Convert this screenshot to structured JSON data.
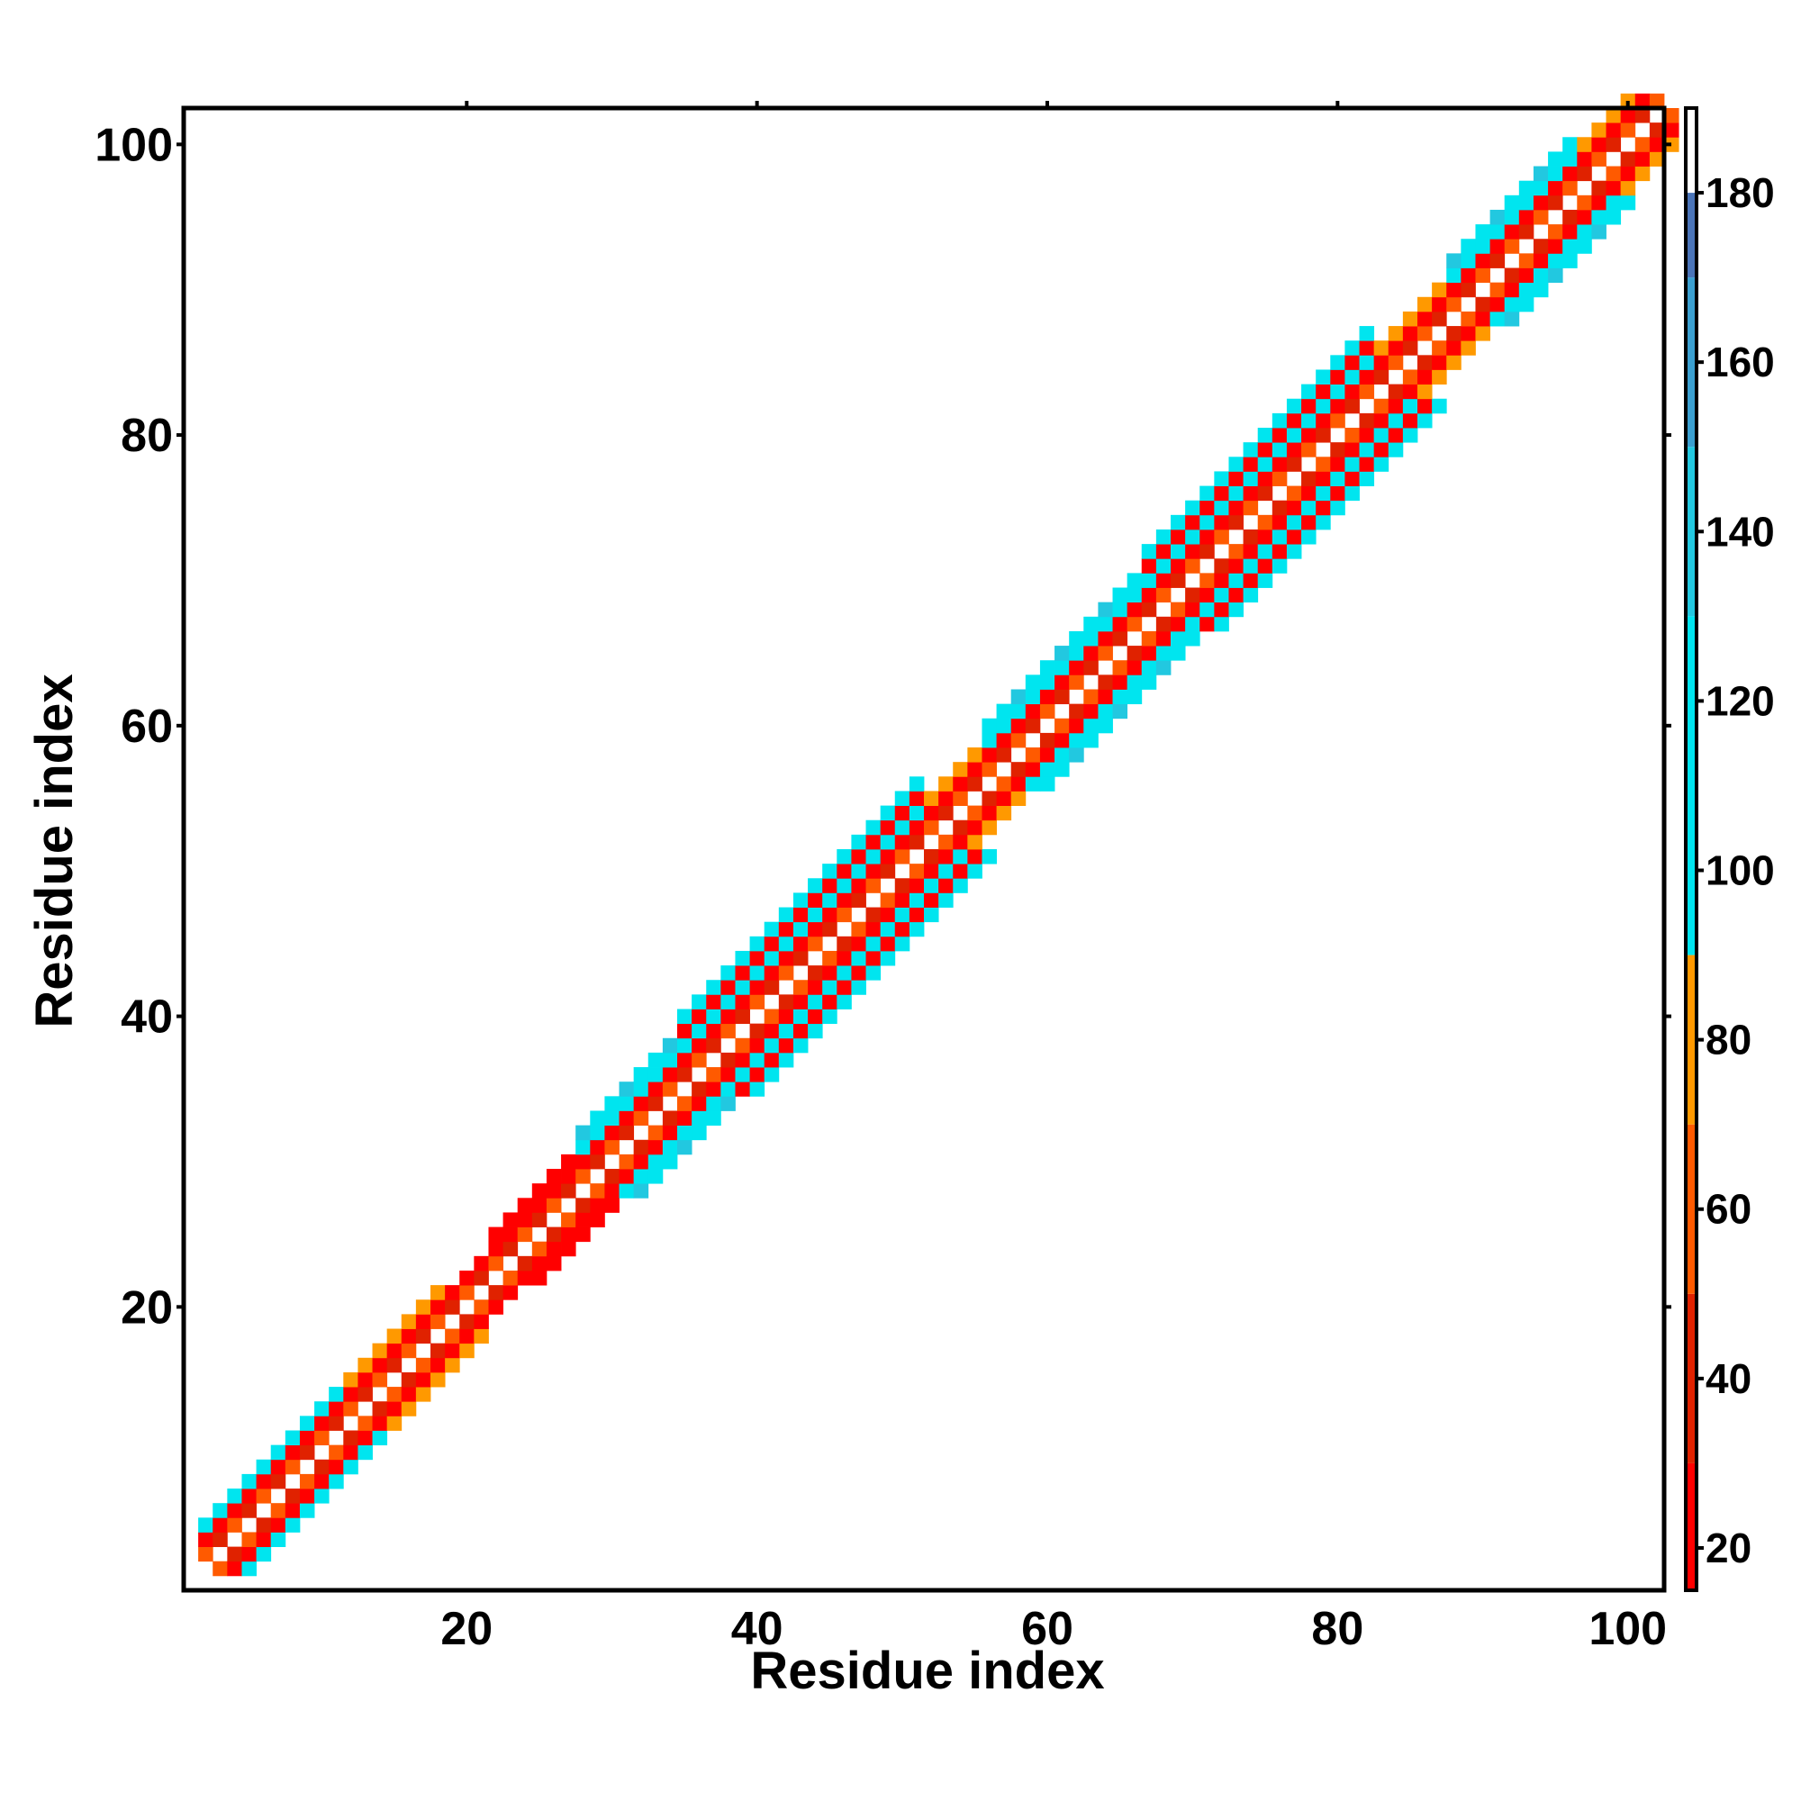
{
  "chart_data": {
    "type": "heatmap",
    "title": "",
    "xlabel": "Residue index",
    "ylabel": "Residue index",
    "xlim": [
      1,
      102
    ],
    "ylim": [
      1,
      102
    ],
    "x_ticks": [
      20,
      40,
      60,
      80,
      100
    ],
    "y_ticks": [
      20,
      40,
      60,
      80,
      100
    ],
    "grid": false,
    "colorbar": {
      "position": "right",
      "range": [
        15,
        190
      ],
      "ticks": [
        20,
        40,
        60,
        80,
        100,
        120,
        140,
        160,
        180
      ],
      "bands": [
        {
          "min": 15,
          "max": 30,
          "color": "#ff0000"
        },
        {
          "min": 30,
          "max": 50,
          "color": "#e02200"
        },
        {
          "min": 50,
          "max": 70,
          "color": "#ff5a00"
        },
        {
          "min": 70,
          "max": 90,
          "color": "#ff9900"
        },
        {
          "min": 90,
          "max": 130,
          "color": "#00e5ef"
        },
        {
          "min": 130,
          "max": 150,
          "color": "#22c8e0"
        },
        {
          "min": 150,
          "max": 170,
          "color": "#3a9fd0"
        },
        {
          "min": 170,
          "max": 180,
          "color": "#4a74b8"
        },
        {
          "min": 180,
          "max": 190,
          "color": "#ffffff"
        }
      ]
    },
    "segments": [
      {
        "start": 1,
        "end": 11,
        "width": 3,
        "cross": "cyan"
      },
      {
        "start": 11,
        "end": 18,
        "width": 3,
        "cross": "orange"
      },
      {
        "start": 18,
        "end": 21,
        "width": 2,
        "cross": "cyan"
      },
      {
        "start": 21,
        "end": 27,
        "width": 3,
        "cross": "red"
      },
      {
        "start": 27,
        "end": 34,
        "width": 4,
        "cross": "cyan"
      },
      {
        "start": 34,
        "end": 51,
        "width": 5,
        "cross": "cyan"
      },
      {
        "start": 51,
        "end": 55,
        "width": 3,
        "cross": "orange"
      },
      {
        "start": 55,
        "end": 66,
        "width": 4,
        "cross": "cyan"
      },
      {
        "start": 66,
        "end": 82,
        "width": 5,
        "cross": "cyan"
      },
      {
        "start": 82,
        "end": 87,
        "width": 3,
        "cross": "orange"
      },
      {
        "start": 87,
        "end": 96,
        "width": 4,
        "cross": "cyan"
      },
      {
        "start": 96,
        "end": 103,
        "width": 3,
        "cross": "orange"
      }
    ]
  }
}
